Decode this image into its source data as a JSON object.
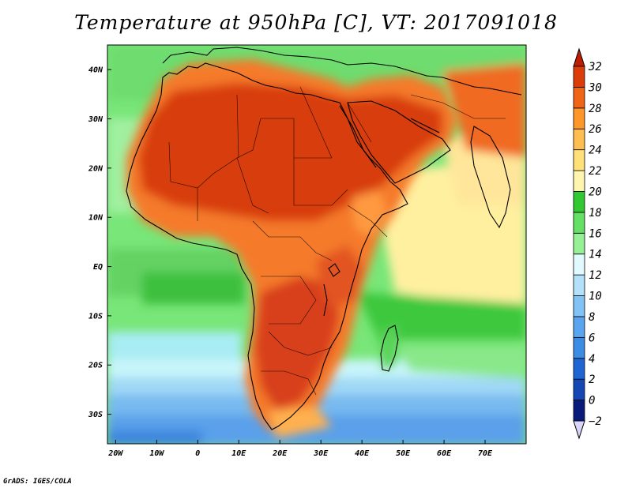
{
  "title": "Temperature at 950hPa [C], VT: 2017091018",
  "credit": "GrADS: IGES/COLA",
  "map": {
    "lon_range": [
      -22,
      80
    ],
    "lat_range": [
      -36,
      45
    ],
    "lon_ticks": [
      "20W",
      "10W",
      "0",
      "10E",
      "20E",
      "30E",
      "40E",
      "50E",
      "60E",
      "70E"
    ],
    "lat_ticks": [
      "40N",
      "30N",
      "20N",
      "10N",
      "EQ",
      "10S",
      "20S",
      "30S"
    ]
  },
  "colorbar": {
    "levels": [
      "-2",
      "0",
      "2",
      "4",
      "6",
      "8",
      "10",
      "12",
      "14",
      "16",
      "18",
      "20",
      "22",
      "24",
      "26",
      "28",
      "30",
      "32"
    ],
    "colors": [
      "#0a1a7a",
      "#1446b4",
      "#1e64d2",
      "#3c8ce6",
      "#5aa5f0",
      "#82c3f5",
      "#b4e1fa",
      "#e1faff",
      "#96f096",
      "#64e164",
      "#32c832",
      "#fff5af",
      "#ffe178",
      "#ffbe50",
      "#ff9628",
      "#f06414",
      "#dc3c0a",
      "#be1e00",
      "#d9d5fa"
    ]
  }
}
